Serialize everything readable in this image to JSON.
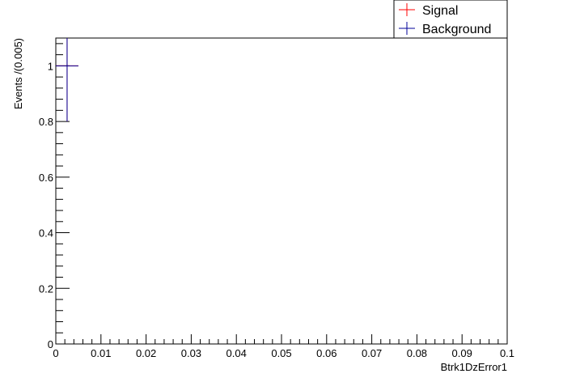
{
  "chart_data": {
    "type": "scatter",
    "xlabel": "Btrk1DzError1",
    "ylabel": "Events /(0.005)",
    "xlim": [
      0,
      0.1
    ],
    "ylim": [
      0,
      1.1
    ],
    "x_ticks": [
      0,
      0.01,
      0.02,
      0.03,
      0.04,
      0.05,
      0.06,
      0.07,
      0.08,
      0.09,
      0.1
    ],
    "x_tick_labels": [
      "0",
      "0.01",
      "0.02",
      "0.03",
      "0.04",
      "0.05",
      "0.06",
      "0.07",
      "0.08",
      "0.09",
      "0.1"
    ],
    "y_ticks": [
      0,
      0.2,
      0.4,
      0.6,
      0.8,
      1
    ],
    "y_tick_labels": [
      "0",
      "0.2",
      "0.4",
      "0.6",
      "0.8",
      "1"
    ],
    "grid": false,
    "legend_position": "top-right",
    "series": [
      {
        "name": "Signal",
        "color": "#ff0000",
        "points": [
          {
            "x": 0.0025,
            "y": 1.0,
            "xerr": 0.0025,
            "yerr": 0.2
          }
        ]
      },
      {
        "name": "Background",
        "color": "#000099",
        "points": [
          {
            "x": 0.0025,
            "y": 1.0,
            "xerr": 0.0025,
            "yerr": 0.2
          }
        ]
      }
    ]
  }
}
